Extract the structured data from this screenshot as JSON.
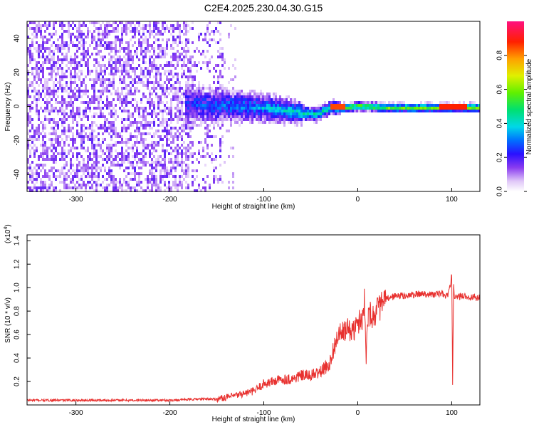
{
  "title": "C2E4.2025.230.04.30.G15",
  "colors": {
    "snr_line": "#e8312f",
    "axis": "#000000"
  },
  "chart_data": [
    {
      "type": "heatmap",
      "xlabel": "Height of straight line (km)",
      "ylabel": "Frequency (Hz)",
      "xlim": [
        -352,
        130
      ],
      "ylim": [
        -50,
        50
      ],
      "xticks": [
        -300,
        -200,
        -100,
        0,
        100
      ],
      "yticks": [
        -40,
        -20,
        0,
        20,
        40
      ],
      "colorbar": {
        "label": "Normalized spectral amplitude",
        "range": [
          0,
          1
        ],
        "ticks": [
          0.0,
          0.2,
          0.4,
          0.6,
          0.8
        ],
        "tick_labels": [
          "0.0",
          "0.2",
          "0.4",
          "0.6",
          "0.8"
        ]
      },
      "description_points": [
        {
          "x": -350,
          "f": 0,
          "a": 0.1
        },
        {
          "x": -150,
          "f": 0,
          "a": 0.15
        },
        {
          "x": -100,
          "f": 0,
          "a": 0.3
        },
        {
          "x": -60,
          "f": -2,
          "a": 0.4
        },
        {
          "x": -30,
          "f": 0,
          "a": 0.85
        },
        {
          "x": 0,
          "f": 1,
          "a": 0.6
        },
        {
          "x": 50,
          "f": 0,
          "a": 0.55
        },
        {
          "x": 100,
          "f": 0,
          "a": 0.9
        },
        {
          "x": 130,
          "f": 0,
          "a": 0.7
        }
      ],
      "ridge": [
        {
          "x": -180,
          "f": 2
        },
        {
          "x": -140,
          "f": 1
        },
        {
          "x": -100,
          "f": 0
        },
        {
          "x": -60,
          "f": -3
        },
        {
          "x": -45,
          "f": -4
        },
        {
          "x": -30,
          "f": 0
        },
        {
          "x": -15,
          "f": 0
        },
        {
          "x": 0,
          "f": 1
        },
        {
          "x": 30,
          "f": 0
        },
        {
          "x": 60,
          "f": 0
        },
        {
          "x": 100,
          "f": 0
        },
        {
          "x": 130,
          "f": 0
        }
      ]
    },
    {
      "type": "line",
      "xlabel": "Height of straight line (km)",
      "ylabel": "SNR (10 * v/v)",
      "y_multiplier": "(x10",
      "y_multiplier_exp": "4",
      "y_multiplier_close": ")",
      "xlim": [
        -352,
        130
      ],
      "ylim": [
        0,
        1.45
      ],
      "xticks": [
        -300,
        -200,
        -100,
        0,
        100
      ],
      "yticks": [
        0.2,
        0.4,
        0.6,
        0.8,
        1.0,
        1.2,
        1.4
      ],
      "ytick_labels": [
        "0.2",
        "0.4",
        "0.6",
        "0.8",
        "1.0",
        "1.2",
        "1.4"
      ],
      "series": [
        {
          "x": [
            -352,
            -300,
            -250,
            -200,
            -170,
            -150,
            -130,
            -110,
            -100,
            -90,
            -80,
            -70,
            -60,
            -50,
            -40,
            -30,
            -25,
            -20,
            -15,
            -10,
            -5,
            0,
            5,
            7,
            9,
            10,
            12,
            15,
            20,
            25,
            30,
            40,
            50,
            60,
            70,
            80,
            90,
            95,
            98,
            100,
            101,
            102,
            103,
            105,
            110,
            120,
            130
          ],
          "y": [
            0.04,
            0.04,
            0.04,
            0.04,
            0.05,
            0.05,
            0.08,
            0.12,
            0.18,
            0.2,
            0.22,
            0.22,
            0.25,
            0.25,
            0.28,
            0.35,
            0.5,
            0.6,
            0.62,
            0.65,
            0.62,
            0.7,
            0.75,
            0.9,
            0.35,
            0.75,
            0.8,
            0.75,
            0.8,
            0.85,
            0.9,
            0.93,
            0.93,
            0.94,
            0.95,
            0.94,
            0.95,
            0.92,
            1.0,
            1.1,
            0.2,
            1.0,
            0.9,
            0.92,
            0.93,
            0.92,
            0.91
          ]
        }
      ]
    }
  ]
}
